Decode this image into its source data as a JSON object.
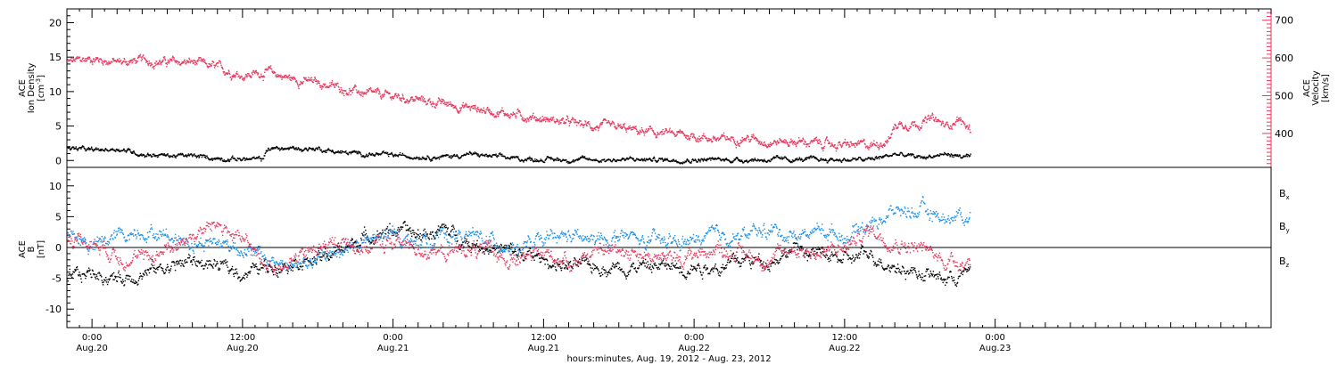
{
  "colors": {
    "black": "#000000",
    "pink": "#e8395f",
    "blue": "#1a8fe8",
    "frame": "#000000"
  },
  "x_axis": {
    "label": "hours:minutes, Aug. 19, 2012 - Aug. 23, 2012",
    "range_hours": [
      -2,
      94
    ],
    "ticks": [
      {
        "t": 0,
        "time": "0:00",
        "date": "Aug.20"
      },
      {
        "t": 12,
        "time": "12:00",
        "date": "Aug.20"
      },
      {
        "t": 24,
        "time": "0:00",
        "date": "Aug.21"
      },
      {
        "t": 36,
        "time": "12:00",
        "date": "Aug.21"
      },
      {
        "t": 48,
        "time": "0:00",
        "date": "Aug.22"
      },
      {
        "t": 60,
        "time": "12:00",
        "date": "Aug.22"
      },
      {
        "t": 72,
        "time": "0:00",
        "date": "Aug.23"
      }
    ]
  },
  "chart_data": [
    {
      "type": "scatter",
      "panel": "top",
      "ylabel_left": [
        "ACE",
        "Ion Density",
        "[cm^-3]"
      ],
      "ylabel_right": [
        "ACE",
        "Velocity",
        "[km/s]"
      ],
      "ylim_left": [
        -1,
        22
      ],
      "ylim_right": [
        310,
        730
      ],
      "yticks_left": [
        0,
        5,
        10,
        15,
        20
      ],
      "yticks_right": [
        400,
        500,
        600,
        700
      ],
      "series": [
        {
          "axis": "left",
          "color": "#000000",
          "x": [
            -2,
            0,
            2,
            4,
            6,
            8,
            10,
            12,
            13.5,
            14,
            16,
            18,
            20,
            24,
            28,
            30,
            34,
            38,
            42,
            46,
            50,
            54,
            58,
            62,
            64,
            66,
            68,
            70
          ],
          "y": [
            2.0,
            1.5,
            1.8,
            1.0,
            0.8,
            0.7,
            0.4,
            0.3,
            0.2,
            1.8,
            1.8,
            1.8,
            1.2,
            0.8,
            0.6,
            1.0,
            0.3,
            0.2,
            0.2,
            0.2,
            0.2,
            0.2,
            0.2,
            0.2,
            1.0,
            0.5,
            1.0,
            0.5
          ]
        },
        {
          "axis": "right",
          "color": "#e8395f",
          "x": [
            -2,
            0,
            2,
            4,
            6,
            8,
            10,
            12,
            14,
            16,
            18,
            20,
            22,
            24,
            26,
            28,
            30,
            32,
            34,
            36,
            38,
            40,
            42,
            44,
            46,
            48,
            50,
            52,
            54,
            56,
            58,
            60,
            62,
            63.5,
            64,
            66,
            67,
            68,
            69,
            70
          ],
          "y": [
            590,
            600,
            590,
            595,
            590,
            590,
            575,
            555,
            565,
            545,
            535,
            520,
            505,
            500,
            490,
            480,
            470,
            460,
            450,
            440,
            430,
            420,
            415,
            405,
            400,
            395,
            385,
            390,
            380,
            380,
            375,
            370,
            370,
            385,
            425,
            430,
            440,
            420,
            440,
            410
          ]
        }
      ]
    },
    {
      "type": "scatter",
      "panel": "bottom",
      "ylabel": [
        "ACE",
        "B",
        "[nT]"
      ],
      "ylim": [
        -13,
        13
      ],
      "yticks": [
        -10,
        -5,
        0,
        5,
        10
      ],
      "legend": [
        "Bx",
        "By",
        "Bz"
      ],
      "legend_position": "right",
      "series": [
        {
          "name": "Bx",
          "color": "#000000",
          "x": [
            -2,
            0,
            2,
            4,
            6,
            8,
            10,
            12,
            14,
            16,
            18,
            20,
            22,
            24,
            26,
            28,
            30,
            32,
            34,
            36,
            38,
            40,
            42,
            44,
            46,
            48,
            50,
            52,
            54,
            56,
            58,
            60,
            62,
            64,
            66,
            68,
            70
          ],
          "y": [
            -5,
            -4,
            -5,
            -4,
            -3,
            -2,
            -3,
            -4,
            -3,
            -2,
            -2,
            0,
            2,
            3,
            2,
            3,
            1,
            0,
            -1,
            -2,
            -3,
            -3,
            -3,
            -3,
            -3,
            -3,
            -3,
            -2,
            -2,
            0,
            -1,
            -2,
            -1,
            -3,
            -4,
            -5,
            -4
          ]
        },
        {
          "name": "By",
          "color": "#1a8fe8",
          "x": [
            -2,
            0,
            2,
            4,
            6,
            8,
            10,
            12,
            14,
            16,
            18,
            20,
            22,
            24,
            26,
            28,
            30,
            32,
            34,
            36,
            38,
            40,
            42,
            44,
            46,
            48,
            50,
            52,
            54,
            56,
            58,
            60,
            62,
            64,
            66,
            68,
            70
          ],
          "y": [
            3,
            0,
            2,
            3,
            2,
            1,
            1,
            0,
            -2,
            -3,
            -2,
            0,
            1,
            2,
            1,
            2,
            2,
            1,
            0,
            1,
            2,
            1,
            2,
            1,
            1,
            1,
            2,
            2,
            3,
            2,
            3,
            2,
            4,
            6,
            6,
            5,
            5
          ]
        },
        {
          "name": "Bz",
          "color": "#e8395f",
          "x": [
            -2,
            0,
            2,
            4,
            6,
            8,
            10,
            12,
            14,
            16,
            18,
            20,
            22,
            24,
            26,
            28,
            30,
            32,
            34,
            36,
            38,
            40,
            42,
            44,
            46,
            48,
            50,
            52,
            54,
            56,
            58,
            60,
            62,
            64,
            66,
            68,
            70
          ],
          "y": [
            2,
            1,
            -1,
            -2,
            0,
            2,
            4,
            1,
            -3,
            -2,
            0,
            1,
            0,
            1,
            0,
            -1,
            0,
            -1,
            -2,
            -1,
            -2,
            -1,
            0,
            -1,
            -2,
            -1,
            0,
            -1,
            -2,
            0,
            -1,
            0,
            3,
            1,
            0,
            -2,
            -2
          ]
        }
      ]
    }
  ]
}
